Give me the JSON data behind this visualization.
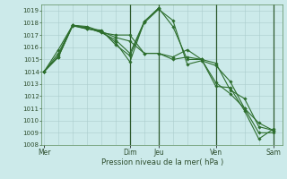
{
  "background_color": "#cceaea",
  "grid_color": "#aacccc",
  "line_color": "#2d6e2d",
  "marker_color": "#2d6e2d",
  "xlabel_text": "Pression niveau de la mer( hPa )",
  "ylim": [
    1008,
    1019.5
  ],
  "yticks": [
    1008,
    1009,
    1010,
    1011,
    1012,
    1013,
    1014,
    1015,
    1016,
    1017,
    1018,
    1019
  ],
  "day_labels": [
    "Mer",
    "Dim",
    "Jeu",
    "Ven",
    "Sam"
  ],
  "day_positions": [
    0,
    36,
    48,
    72,
    96
  ],
  "vline_positions": [
    36,
    48,
    72,
    96
  ],
  "xlim": [
    -1,
    100
  ],
  "series": [
    {
      "x": [
        0,
        6,
        12,
        18,
        24,
        30,
        36,
        42,
        48,
        54,
        60,
        66,
        72,
        78,
        84,
        90,
        96
      ],
      "y": [
        1014.0,
        1015.2,
        1017.75,
        1017.5,
        1017.4,
        1016.2,
        1015.3,
        1018.0,
        1019.1,
        1018.2,
        1014.6,
        1014.9,
        1014.5,
        1013.2,
        1011.0,
        1009.0,
        1009.0
      ]
    },
    {
      "x": [
        0,
        6,
        12,
        18,
        24,
        30,
        36,
        42,
        48,
        54,
        60,
        66,
        72,
        78,
        84,
        90,
        96
      ],
      "y": [
        1014.0,
        1015.2,
        1017.8,
        1017.5,
        1017.3,
        1016.4,
        1014.8,
        1018.1,
        1019.2,
        1017.7,
        1015.0,
        1015.0,
        1014.7,
        1012.5,
        1011.8,
        1009.5,
        1009.2
      ]
    },
    {
      "x": [
        0,
        6,
        12,
        18,
        24,
        30,
        36,
        42,
        48
      ],
      "y": [
        1014.0,
        1015.3,
        1017.8,
        1017.6,
        1017.2,
        1016.6,
        1015.5,
        1018.1,
        1019.2
      ]
    },
    {
      "x": [
        0,
        6,
        12,
        18,
        24,
        30,
        36,
        42,
        48,
        54,
        60,
        66,
        72,
        78,
        84,
        90,
        96
      ],
      "y": [
        1014.0,
        1015.5,
        1017.8,
        1017.7,
        1017.3,
        1016.8,
        1016.5,
        1015.5,
        1015.5,
        1015.2,
        1015.8,
        1015.0,
        1013.1,
        1012.2,
        1011.0,
        1009.8,
        1009.2
      ]
    },
    {
      "x": [
        0,
        6,
        12,
        18,
        24,
        30,
        36,
        42,
        48,
        54,
        60,
        66,
        72,
        78,
        84,
        90,
        96
      ],
      "y": [
        1014.0,
        1015.8,
        1017.8,
        1017.6,
        1017.2,
        1017.0,
        1017.0,
        1015.5,
        1015.5,
        1015.0,
        1015.2,
        1015.0,
        1012.8,
        1012.7,
        1010.8,
        1008.5,
        1009.3
      ]
    }
  ]
}
